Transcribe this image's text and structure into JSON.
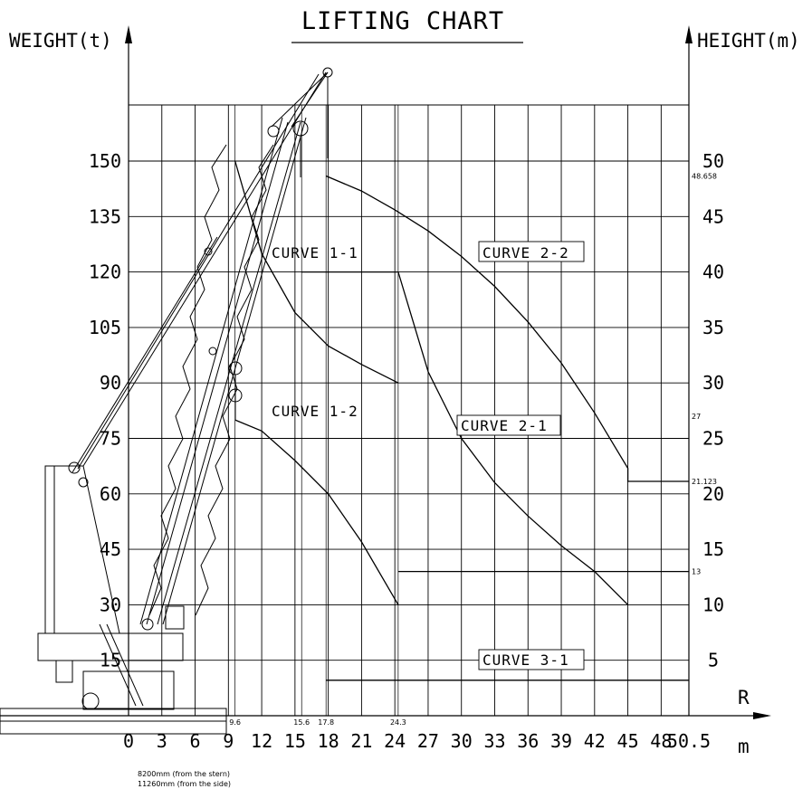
{
  "title": "LIFTING CHART",
  "chart_data": {
    "type": "line",
    "title": "LIFTING CHART",
    "xlabel": "R",
    "xunit": "m",
    "ylabel_left": "WEIGHT(t)",
    "ylabel_right": "HEIGHT(m)",
    "x_ticks": [
      "0",
      "3",
      "6",
      "9",
      "12",
      "15",
      "18",
      "21",
      "24",
      "27",
      "30",
      "33",
      "36",
      "39",
      "42",
      "45",
      "48",
      "50.5"
    ],
    "y_left_ticks": [
      "15",
      "30",
      "45",
      "60",
      "75",
      "90",
      "105",
      "120",
      "135",
      "150"
    ],
    "y_right_ticks": [
      "5",
      "10",
      "15",
      "20",
      "25",
      "30",
      "35",
      "40",
      "45",
      "50"
    ],
    "x_annotations": [
      "9.6",
      "15.6",
      "17.8",
      "24.3"
    ],
    "right_annotations": [
      "48.658",
      "27",
      "21.123",
      "13"
    ],
    "series": [
      {
        "name": "CURVE 1-1",
        "x": [
          9.6,
          12,
          15,
          18,
          21,
          24.3
        ],
        "y": [
          150,
          125,
          109,
          100,
          95,
          90
        ]
      },
      {
        "name": "CURVE 1-2",
        "x": [
          9.6,
          12,
          15,
          18,
          21,
          24.3,
          24.3
        ],
        "y": [
          80,
          77,
          69,
          60,
          47,
          30,
          30
        ]
      },
      {
        "name": "CURVE 2-1",
        "x": [
          15.6,
          24.3,
          27,
          30,
          33,
          36,
          39,
          42,
          45
        ],
        "y": [
          120,
          120,
          93,
          75,
          63,
          54,
          46,
          39,
          30
        ]
      },
      {
        "name": "CURVE 2-2",
        "x": [
          17.8,
          21,
          24,
          27,
          30,
          33,
          36,
          39,
          42,
          45,
          45,
          50.5
        ],
        "y": [
          48.658,
          47.3,
          45.6,
          43.7,
          41.4,
          38.7,
          35.5,
          31.8,
          27.3,
          22.3,
          21.123,
          21.123
        ],
        "axis": "right"
      },
      {
        "name": "CURVE 3-1",
        "x": [
          17.8,
          50.5
        ],
        "y": [
          3.2,
          3.2
        ],
        "axis": "right"
      },
      {
        "name": "",
        "x": [
          24.3,
          50.5
        ],
        "y": [
          13,
          13
        ],
        "axis": "right"
      }
    ],
    "curve_labels": [
      "CURVE 1-1",
      "CURVE 1-2",
      "CURVE 2-1",
      "CURVE 2-2",
      "CURVE 3-1"
    ],
    "xlim": [
      0,
      50.5
    ],
    "ylim_left": [
      0,
      150
    ],
    "ylim_right": [
      0,
      50
    ],
    "grid": true
  },
  "footnotes": [
    "8200mm (from the stern)",
    "11260mm (from the side)"
  ]
}
